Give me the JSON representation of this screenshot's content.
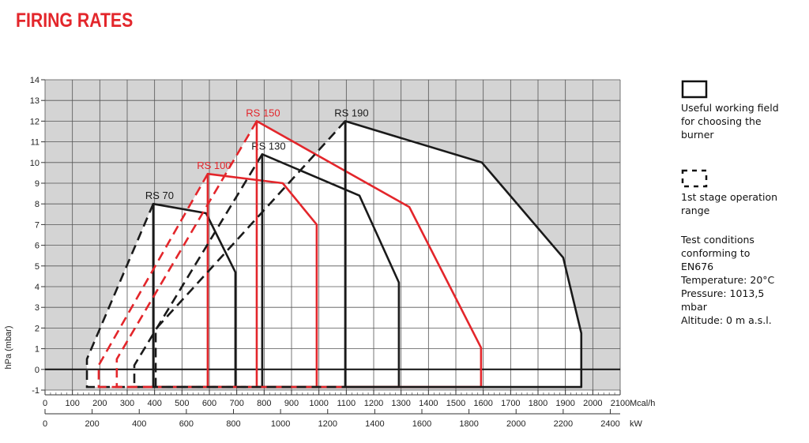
{
  "chart_data": {
    "type": "line",
    "title": "FIRING RATES",
    "y_label": "hPa (mbar)",
    "x_unit": "Mcal/h",
    "x2_unit": "kW",
    "xlim": [
      0,
      2100
    ],
    "xticks": [
      0,
      100,
      200,
      300,
      400,
      500,
      600,
      700,
      800,
      900,
      1000,
      1100,
      1200,
      1300,
      1400,
      1500,
      1600,
      1700,
      1800,
      1900,
      2000,
      2100
    ],
    "x2lim": [
      0,
      2442
    ],
    "x2ticks": [
      0,
      200,
      400,
      600,
      800,
      1000,
      1200,
      1400,
      1600,
      1800,
      2000,
      2200,
      2400
    ],
    "ylim": [
      -1,
      14
    ],
    "yticks": [
      -1,
      0,
      1,
      2,
      3,
      4,
      5,
      6,
      7,
      8,
      9,
      10,
      11,
      12,
      13,
      14
    ],
    "grid": true,
    "series": [
      {
        "name": "RS 70",
        "color": "#1a1a1a",
        "x": [
          395,
          395,
          588,
          695,
          695
        ],
        "values": [
          -0.85,
          8.0,
          7.55,
          4.7,
          -0.85
        ],
        "stage_x": [
          395,
          153,
          153,
          395
        ],
        "stage_values": [
          8.0,
          0.5,
          -0.85,
          -0.85
        ]
      },
      {
        "name": "RS 100",
        "color": "#e3262b",
        "x": [
          594,
          594,
          868,
          992,
          992
        ],
        "values": [
          -0.85,
          9.45,
          9.0,
          7.0,
          -0.85
        ],
        "stage_x": [
          594,
          196,
          196,
          594
        ],
        "stage_values": [
          9.45,
          0.2,
          -0.85,
          -0.85
        ]
      },
      {
        "name": "RS 130",
        "color": "#1a1a1a",
        "x": [
          793,
          793,
          1148,
          1292,
          1292
        ],
        "values": [
          -0.85,
          10.4,
          8.4,
          4.2,
          -0.85
        ],
        "stage_x": [
          793,
          326,
          326,
          793
        ],
        "stage_values": [
          10.4,
          0.2,
          -0.85,
          -0.85
        ]
      },
      {
        "name": "RS 150",
        "color": "#e3262b",
        "x": [
          773,
          773,
          1330,
          1592,
          1592
        ],
        "values": [
          -0.85,
          12.0,
          7.85,
          1.05,
          -0.85
        ],
        "stage_x": [
          773,
          262,
          262,
          773
        ],
        "stage_values": [
          12.0,
          0.5,
          -0.85,
          -0.85
        ]
      },
      {
        "name": "RS 190",
        "color": "#1a1a1a",
        "x": [
          1096,
          1096,
          1595,
          1892,
          1958,
          1958
        ],
        "values": [
          -0.85,
          12.0,
          10.0,
          5.4,
          1.75,
          -0.85
        ],
        "stage_x": [
          1096,
          404,
          404,
          1096
        ],
        "stage_values": [
          12.0,
          1.95,
          -0.85,
          -0.85
        ]
      }
    ],
    "legend": [
      {
        "style": "solid",
        "lines": [
          "Useful working field",
          "for choosing the",
          "burner"
        ]
      },
      {
        "style": "dashed",
        "lines": [
          "1st stage operation",
          "range"
        ]
      }
    ],
    "notes": [
      "Test conditions",
      "conforming to",
      "EN676",
      "Temperature: 20°C",
      "Pressure: 1013,5",
      "mbar",
      "Altitude: 0 m a.s.l."
    ]
  }
}
